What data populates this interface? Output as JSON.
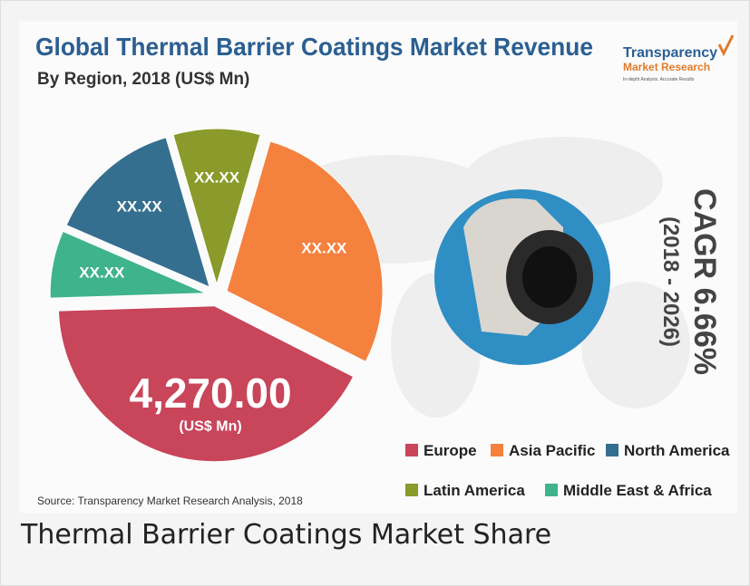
{
  "chart_data": {
    "type": "pie",
    "title": "Global Thermal Barrier Coatings Market Revenue",
    "subtitle": "By Region, 2018 (US$ Mn)",
    "categories": [
      "Latin America",
      "Asia Pacific",
      "Europe",
      "Middle East & Africa",
      "North America"
    ],
    "values": [
      915,
      2847,
      4270,
      712,
      1423
    ],
    "value_labels": [
      "XX.XX",
      "XX.XX",
      "4,270.00",
      "XX.XX",
      "XX.XX"
    ],
    "unit_note": "(US$ Mn)",
    "colors": [
      "#8a9a2b",
      "#f5813f",
      "#c8455a",
      "#3fb38c",
      "#356f8f"
    ],
    "legend_order": [
      2,
      1,
      4,
      0,
      3
    ]
  },
  "logo": {
    "name": "Transparency",
    "sub": "Market Research",
    "tagline": "In-depth Analysis. Accurate Results"
  },
  "cagr": {
    "rate": "CAGR 6.66%",
    "period": "(2018 - 2026)"
  },
  "source": "Source: Transparency Market Research Analysis, 2018",
  "caption": "Thermal Barrier Coatings Market Share"
}
